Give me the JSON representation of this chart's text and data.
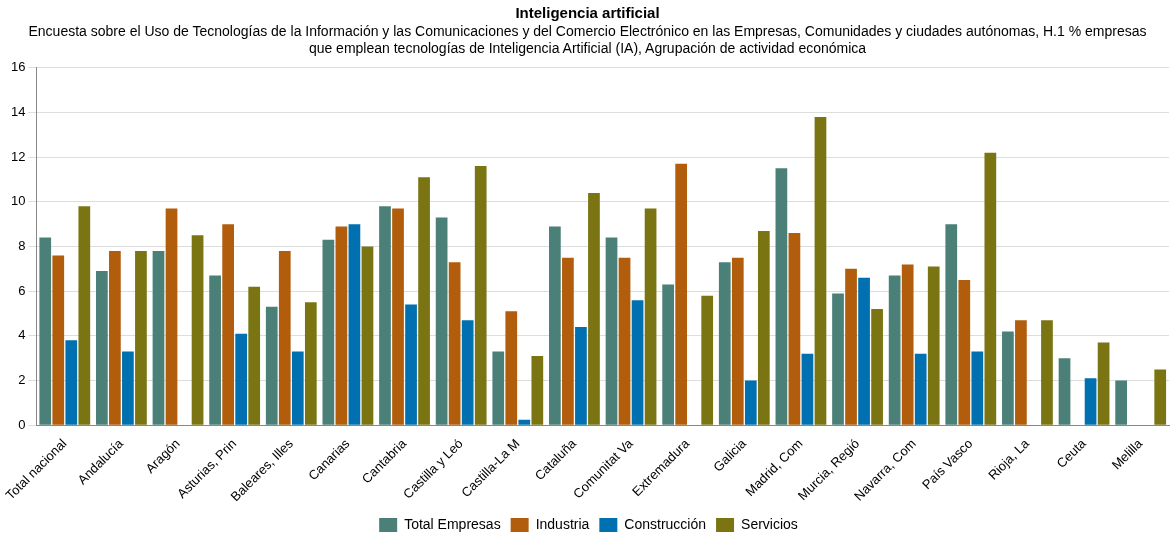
{
  "chart_data": {
    "type": "bar",
    "title": "Inteligencia artificial",
    "subtitle": "Encuesta sobre el Uso de Tecnologías de la Información y las Comunicaciones y del Comercio Electrónico en las Empresas, Comunidades y ciudades autónomas, H.1 % empresas que emplean tecnologías de Inteligencia Artificial (IA), Agrupación de actividad económica",
    "categories": [
      "Total nacional",
      "Andalucía",
      "Aragón",
      "Asturias, Prin",
      "Baleares, Illes",
      "Canarias",
      "Cantabria",
      "Castilla y Leó",
      "Castilla-La M",
      "Cataluña",
      "Comunitat Va",
      "Extremadura",
      "Galicia",
      "Madrid, Com",
      "Murcia, Regió",
      "Navarra, Com",
      "País Vasco",
      "Rioja, La",
      "Ceuta",
      "Melilla"
    ],
    "series": [
      {
        "name": "Total Empresas",
        "color": "#4a8078",
        "values": [
          8.4,
          6.9,
          7.8,
          6.7,
          5.3,
          8.3,
          9.8,
          9.3,
          3.3,
          8.9,
          8.4,
          6.3,
          7.3,
          11.5,
          5.9,
          6.7,
          9.0,
          4.2,
          3.0,
          2.0
        ]
      },
      {
        "name": "Industria",
        "color": "#b15d0c",
        "values": [
          7.6,
          7.8,
          9.7,
          9.0,
          7.8,
          8.9,
          9.7,
          7.3,
          5.1,
          7.5,
          7.5,
          11.7,
          7.5,
          8.6,
          7.0,
          7.2,
          6.5,
          4.7,
          null,
          null
        ]
      },
      {
        "name": "Construcción",
        "color": "#0070b0",
        "values": [
          3.8,
          3.3,
          null,
          4.1,
          3.3,
          9.0,
          5.4,
          4.7,
          0.25,
          4.4,
          5.6,
          null,
          2.0,
          3.2,
          6.6,
          3.2,
          3.3,
          null,
          2.1,
          null
        ]
      },
      {
        "name": "Servicios",
        "color": "#7a7413",
        "values": [
          9.8,
          7.8,
          8.5,
          6.2,
          5.5,
          8.0,
          11.1,
          11.6,
          3.1,
          10.4,
          9.7,
          5.8,
          8.7,
          13.8,
          5.2,
          7.1,
          12.2,
          4.7,
          3.7,
          2.5
        ]
      }
    ],
    "ylim": [
      0,
      16
    ],
    "yticks": [
      0,
      2,
      4,
      6,
      8,
      10,
      12,
      14,
      16
    ],
    "grid": "y",
    "legend": "bottom"
  }
}
